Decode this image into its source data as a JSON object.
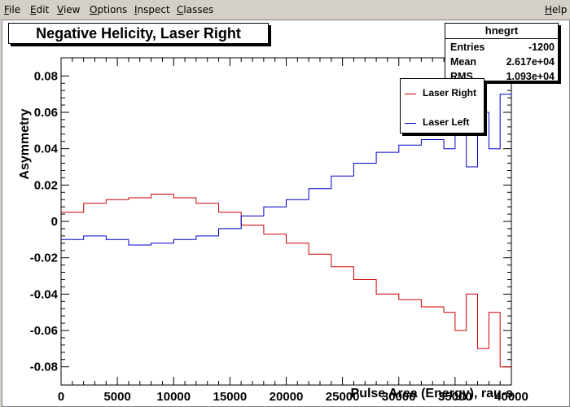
{
  "menubar": {
    "items": [
      "File",
      "Edit",
      "View",
      "Options",
      "Inspect",
      "Classes"
    ],
    "help": "Help"
  },
  "plot_title": "Negative Helicity, Laser Right",
  "stats": {
    "name": "hnegrt",
    "rows": [
      {
        "label": "Entries",
        "value": "-1200"
      },
      {
        "label": "Mean",
        "value": "2.617e+04"
      },
      {
        "label": "RMS",
        "value": "1.093e+04"
      }
    ]
  },
  "legend": [
    {
      "label": "Laser Right",
      "color": "#cc0000"
    },
    {
      "label": "Laser Left",
      "color": "#0000cc"
    }
  ],
  "chart_data": {
    "type": "line",
    "style": "histogram-step",
    "xlabel": "Pulse Area (Energy), rau-s",
    "ylabel": "Asymmetry",
    "xlim": [
      0,
      40000
    ],
    "ylim": [
      -0.09,
      0.09
    ],
    "x_ticks": [
      0,
      5000,
      10000,
      15000,
      20000,
      25000,
      30000,
      35000,
      40000
    ],
    "y_ticks": [
      -0.08,
      -0.06,
      -0.04,
      -0.02,
      0,
      0.02,
      0.04,
      0.06,
      0.08
    ],
    "y_tick_labels": [
      "-0.08",
      "-0.06",
      "-0.04",
      "-0.02",
      "0",
      "0.02",
      "0.04",
      "0.06",
      "0.08"
    ],
    "x": [
      0,
      2000,
      4000,
      6000,
      8000,
      10000,
      12000,
      14000,
      16000,
      18000,
      20000,
      22000,
      24000,
      26000,
      28000,
      30000,
      32000,
      34000,
      35000,
      36000,
      37000,
      38000,
      39000,
      40000
    ],
    "series": [
      {
        "name": "Laser Right",
        "color": "#cc0000",
        "values": [
          0.005,
          0.01,
          0.012,
          0.013,
          0.015,
          0.013,
          0.01,
          0.005,
          -0.002,
          -0.007,
          -0.012,
          -0.018,
          -0.025,
          -0.032,
          -0.04,
          -0.043,
          -0.047,
          -0.05,
          -0.06,
          -0.04,
          -0.07,
          -0.05,
          -0.08,
          -0.06
        ]
      },
      {
        "name": "Laser Left",
        "color": "#0000cc",
        "values": [
          -0.01,
          -0.008,
          -0.01,
          -0.013,
          -0.012,
          -0.01,
          -0.008,
          -0.004,
          0.003,
          0.008,
          0.012,
          0.018,
          0.025,
          0.032,
          0.038,
          0.042,
          0.045,
          0.04,
          0.05,
          0.03,
          0.06,
          0.04,
          0.07,
          0.05
        ]
      }
    ]
  }
}
